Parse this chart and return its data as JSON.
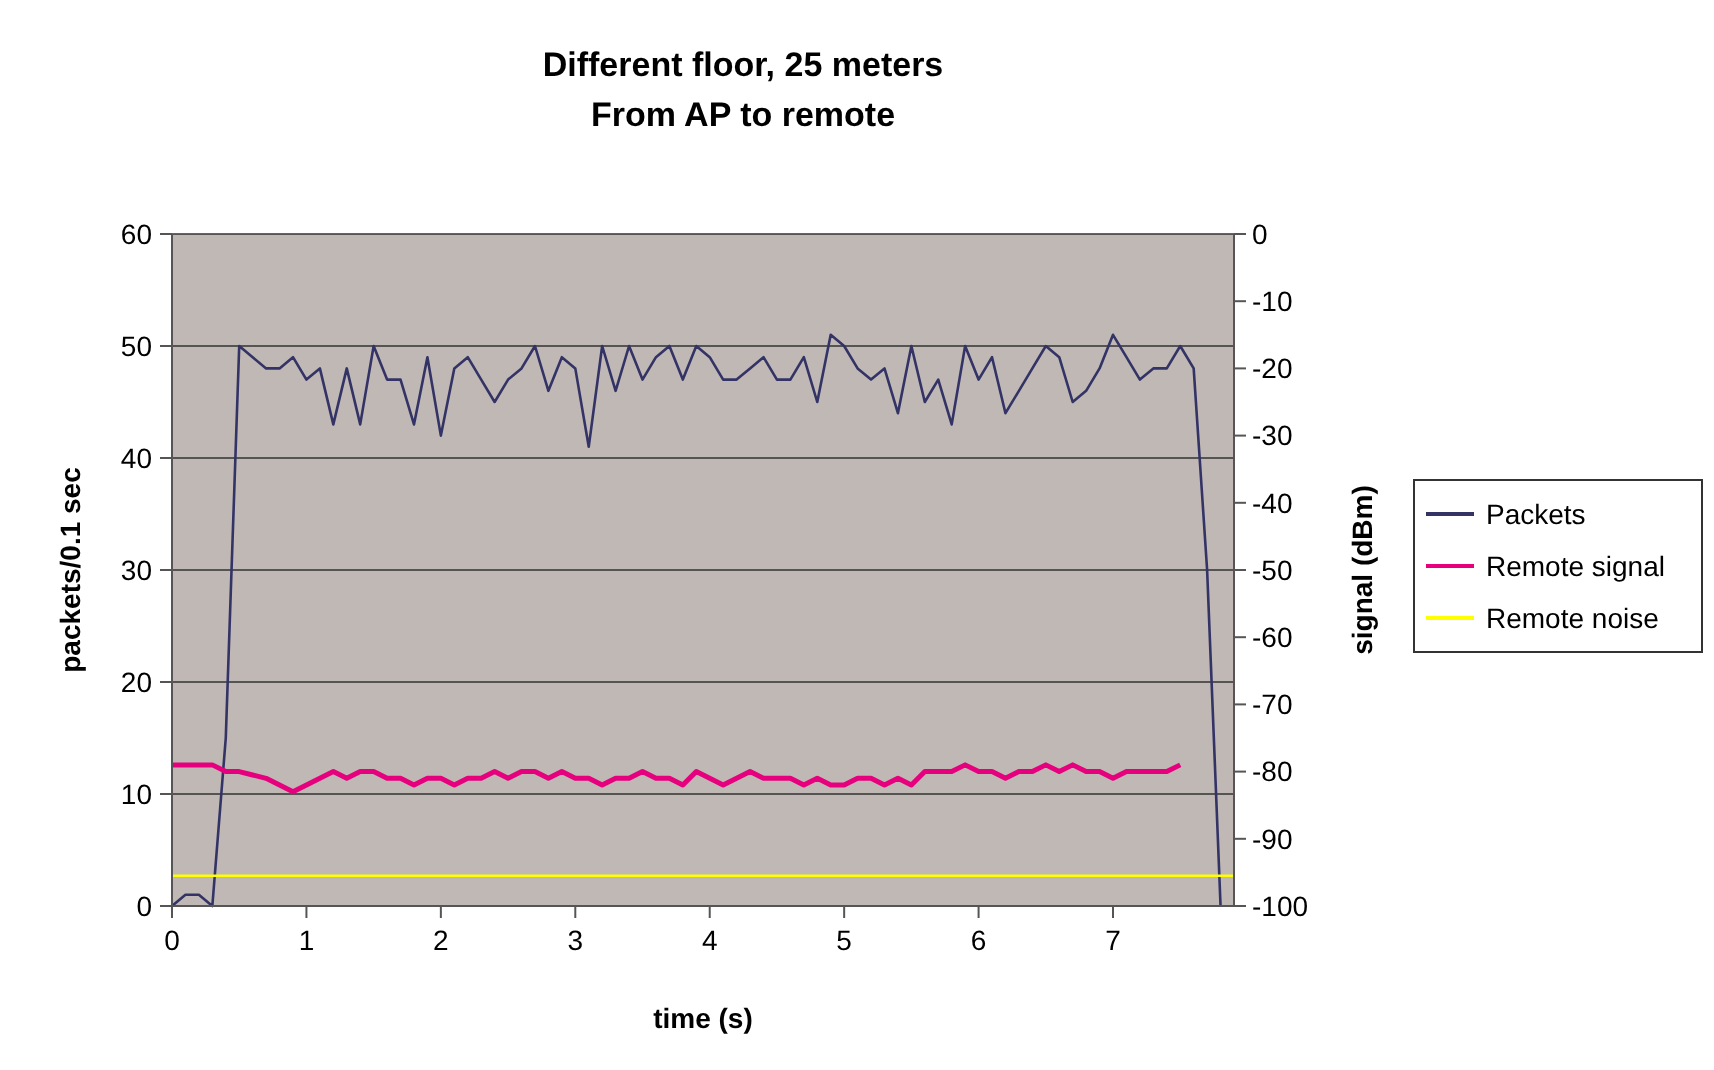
{
  "chart_data": {
    "type": "line",
    "title": "Different floor, 25 meters\nFrom AP to remote",
    "xlabel": "time (s)",
    "ylabel": "packets/0.1 sec",
    "y2label": "signal (dBm)",
    "xlim": [
      0,
      7.9
    ],
    "xticks": [
      0,
      1,
      2,
      3,
      4,
      5,
      6,
      7
    ],
    "ylim": [
      0,
      60
    ],
    "yticks": [
      0,
      10,
      20,
      30,
      40,
      50,
      60
    ],
    "y2lim": [
      -100,
      0
    ],
    "y2ticks": [
      -100,
      -90,
      -80,
      -70,
      -60,
      -50,
      -40,
      -30,
      -20,
      -10,
      0
    ],
    "grid": "y",
    "legend": "right",
    "marker": "none",
    "line_style": "solid",
    "series": [
      {
        "name": "Packets",
        "color": "#333366",
        "x": [
          0,
          0.1,
          0.2,
          0.3,
          0.4,
          0.5,
          0.6,
          0.7,
          0.8,
          0.9,
          1,
          1.1,
          1.2,
          1.3,
          1.4,
          1.5,
          1.6,
          1.7,
          1.8,
          1.9,
          2,
          2.1,
          2.2,
          2.3,
          2.4,
          2.5,
          2.6,
          2.7,
          2.8,
          2.9,
          3,
          3.1,
          3.2,
          3.3,
          3.4,
          3.5,
          3.6,
          3.7,
          3.8,
          3.9,
          4,
          4.1,
          4.2,
          4.3,
          4.4,
          4.5,
          4.6,
          4.7,
          4.8,
          4.9,
          5,
          5.1,
          5.2,
          5.3,
          5.4,
          5.5,
          5.6,
          5.7,
          5.8,
          5.9,
          6,
          6.1,
          6.2,
          6.3,
          6.4,
          6.5,
          6.6,
          6.7,
          6.8,
          6.9,
          7,
          7.1,
          7.2,
          7.3,
          7.4,
          7.5,
          7.6,
          7.7,
          7.8
        ],
        "values": [
          0,
          1,
          1,
          0,
          15,
          50,
          49,
          48,
          48,
          49,
          47,
          48,
          43,
          48,
          43,
          50,
          47,
          47,
          43,
          49,
          42,
          48,
          49,
          47,
          45,
          47,
          48,
          50,
          46,
          49,
          48,
          41,
          50,
          46,
          50,
          47,
          49,
          50,
          47,
          50,
          49,
          47,
          47,
          48,
          49,
          47,
          47,
          49,
          45,
          51,
          50,
          48,
          47,
          48,
          44,
          50,
          45,
          47,
          43,
          50,
          47,
          49,
          44,
          46,
          48,
          50,
          49,
          45,
          46,
          48,
          51,
          49,
          47,
          48,
          48,
          50,
          48,
          30,
          0
        ]
      },
      {
        "name": "Remote signal",
        "color": "#e6007e",
        "axis": "y2",
        "x": [
          0,
          0.3,
          0.4,
          0.5,
          0.6,
          0.7,
          0.8,
          0.9,
          1,
          1.1,
          1.2,
          1.3,
          1.4,
          1.5,
          1.6,
          1.7,
          1.8,
          1.9,
          2,
          2.1,
          2.2,
          2.3,
          2.4,
          2.5,
          2.6,
          2.7,
          2.8,
          2.9,
          3,
          3.1,
          3.2,
          3.3,
          3.4,
          3.5,
          3.6,
          3.7,
          3.8,
          3.9,
          4,
          4.1,
          4.2,
          4.3,
          4.4,
          4.5,
          4.6,
          4.7,
          4.8,
          4.9,
          5,
          5.1,
          5.2,
          5.3,
          5.4,
          5.5,
          5.6,
          5.7,
          5.8,
          5.9,
          6,
          6.1,
          6.2,
          6.3,
          6.4,
          6.5,
          6.6,
          6.7,
          6.8,
          6.9,
          7,
          7.1,
          7.2,
          7.3,
          7.4,
          7.5
        ],
        "values": [
          -79,
          -79,
          -80,
          -80,
          -80.5,
          -81,
          -82,
          -83,
          -82,
          -81,
          -80,
          -81,
          -80,
          -80,
          -81,
          -81,
          -82,
          -81,
          -81,
          -82,
          -81,
          -81,
          -80,
          -81,
          -80,
          -80,
          -81,
          -80,
          -81,
          -81,
          -82,
          -81,
          -81,
          -80,
          -81,
          -81,
          -82,
          -80,
          -81,
          -82,
          -81,
          -80,
          -81,
          -81,
          -81,
          -82,
          -81,
          -82,
          -82,
          -81,
          -81,
          -82,
          -81,
          -82,
          -80,
          -80,
          -80,
          -79,
          -80,
          -80,
          -81,
          -80,
          -80,
          -79,
          -80,
          -79,
          -80,
          -80,
          -81,
          -80,
          -80,
          -80,
          -80,
          -79
        ]
      },
      {
        "name": "Remote noise",
        "color": "#ffff00",
        "axis": "y2",
        "x": [
          0,
          7.9
        ],
        "values": [
          -95.5,
          -95.5
        ]
      }
    ]
  }
}
